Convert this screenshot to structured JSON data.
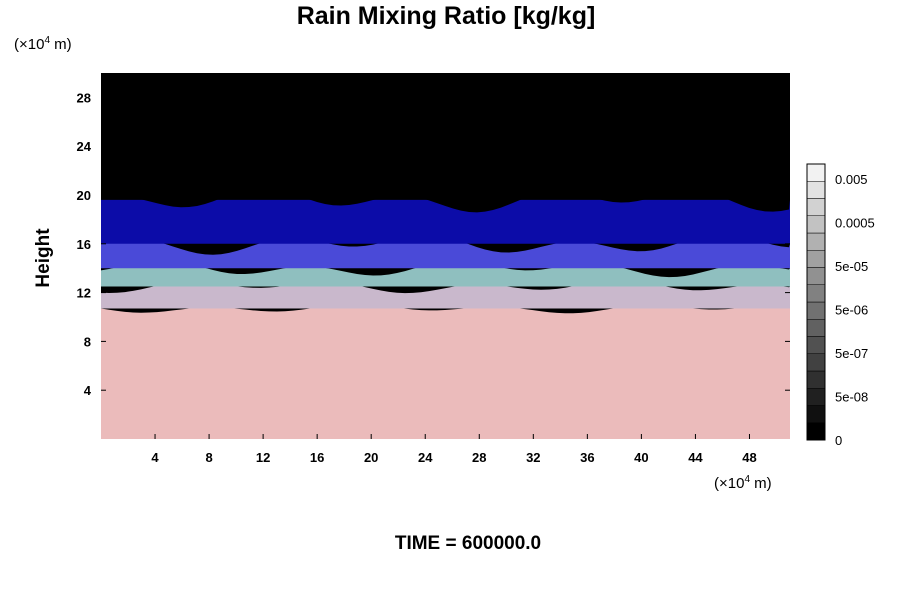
{
  "chart_data": {
    "type": "heatmap",
    "title": "Rain Mixing Ratio [kg/kg]",
    "ylabel": "Height",
    "xlabel": "",
    "x_unit": "(×10",
    "x_unit_exp": "4",
    "x_unit_tail": " m)",
    "y_unit": "(×10",
    "y_unit_exp": "4",
    "y_unit_tail": " m)",
    "xlim": [
      0,
      51
    ],
    "ylim": [
      0,
      30
    ],
    "x_ticks": [
      4,
      8,
      12,
      16,
      20,
      24,
      28,
      32,
      36,
      40,
      44,
      48
    ],
    "y_ticks": [
      4,
      8,
      12,
      16,
      20,
      24,
      28
    ],
    "layers": [
      {
        "from": 0,
        "to": 10.7,
        "color": "#ebbbbb"
      },
      {
        "from": 10.7,
        "to": 12.5,
        "color": "#c9b8cc"
      },
      {
        "from": 12.5,
        "to": 14.0,
        "color": "#8fbfbf"
      },
      {
        "from": 14.0,
        "to": 16.0,
        "color": "#4a4ad8"
      },
      {
        "from": 16.0,
        "to": 19.6,
        "color": "#0c0ca8"
      },
      {
        "from": 19.6,
        "to": 30,
        "color": "#000000"
      }
    ],
    "colorbar": {
      "labels": [
        "0.005",
        "0.0005",
        "5e-05",
        "5e-06",
        "5e-07",
        "5e-08",
        "0"
      ],
      "levels": 16,
      "color_low": "#000000",
      "color_high": "#f2f2f2"
    },
    "footer_label": "TIME = 600000.0"
  }
}
